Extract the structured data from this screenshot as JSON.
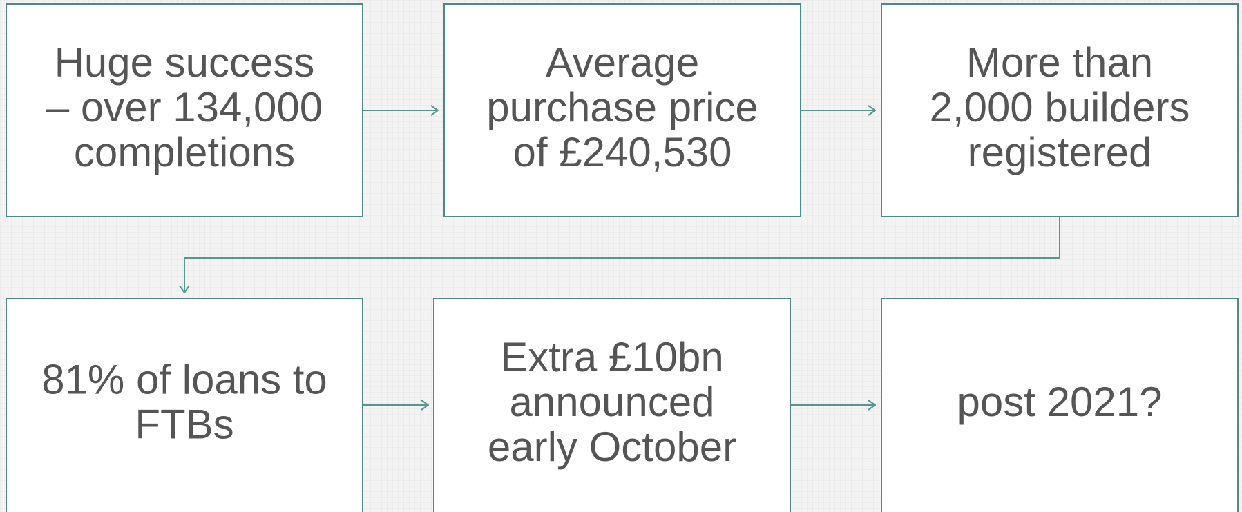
{
  "nodes": [
    {
      "lines": [
        "Huge success",
        "– over 134,000",
        "completions"
      ]
    },
    {
      "lines": [
        "Average",
        "purchase price",
        "of £240,530"
      ]
    },
    {
      "lines": [
        "More than",
        "2,000 builders",
        "registered"
      ]
    },
    {
      "lines": [
        "81% of loans to",
        "FTBs"
      ]
    },
    {
      "lines": [
        "Extra £10bn",
        "announced",
        "early October"
      ]
    },
    {
      "lines": [
        "post 2021?"
      ]
    }
  ]
}
